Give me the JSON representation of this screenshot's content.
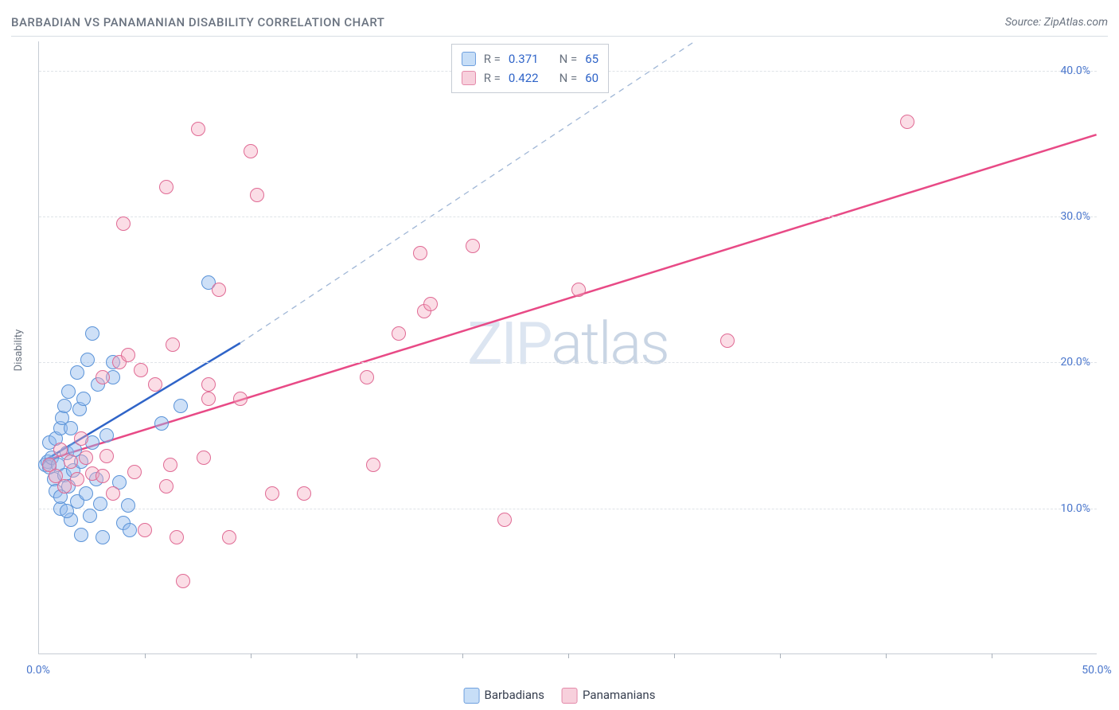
{
  "title": "BARBADIAN VS PANAMANIAN DISABILITY CORRELATION CHART",
  "source": "Source: ZipAtlas.com",
  "watermark_a": "ZIP",
  "watermark_b": "atlas",
  "axis": {
    "ylabel": "Disability",
    "xmin": 0.0,
    "xmax": 50.0,
    "ymin": 0.0,
    "ymax": 42.0,
    "xticks": [
      0.0,
      50.0
    ],
    "xticklabels": [
      "0.0%",
      "50.0%"
    ],
    "yticks": [
      10.0,
      20.0,
      30.0,
      40.0
    ],
    "yticklabels": [
      "10.0%",
      "20.0%",
      "30.0%",
      "40.0%"
    ],
    "xminor": [
      5,
      10,
      15,
      20,
      25,
      30,
      35,
      40,
      45
    ],
    "grid_color": "#dfe3e8",
    "label_color": "#4a76cc",
    "label_fontsize": 14
  },
  "series": [
    {
      "name": "Barbadians",
      "color_fill": "rgba(147,187,237,0.45)",
      "color_stroke": "#5a93d8",
      "trend_color": "#2f64c8",
      "trend_dash_color": "#9fb6d6",
      "trend": {
        "x0": 0.2,
        "y0": 13.2,
        "x1": 9.5,
        "y1": 21.3
      },
      "trend_ext": {
        "x0": 9.5,
        "y0": 21.3,
        "x1": 31.0,
        "y1": 42.0
      },
      "R": 0.371,
      "N": 65,
      "marker_radius": 9,
      "points": [
        [
          0.3,
          13.0
        ],
        [
          0.4,
          13.2
        ],
        [
          0.5,
          12.8
        ],
        [
          0.5,
          14.5
        ],
        [
          0.6,
          13.5
        ],
        [
          0.7,
          12.0
        ],
        [
          0.8,
          11.2
        ],
        [
          0.8,
          14.8
        ],
        [
          0.9,
          13.0
        ],
        [
          1.0,
          15.5
        ],
        [
          1.0,
          10.0
        ],
        [
          1.1,
          16.2
        ],
        [
          1.2,
          12.3
        ],
        [
          1.2,
          17.0
        ],
        [
          1.3,
          13.8
        ],
        [
          1.4,
          11.5
        ],
        [
          1.4,
          18.0
        ],
        [
          1.5,
          9.2
        ],
        [
          1.5,
          15.5
        ],
        [
          1.6,
          12.6
        ],
        [
          1.7,
          14.0
        ],
        [
          1.8,
          19.3
        ],
        [
          1.8,
          10.5
        ],
        [
          1.9,
          16.8
        ],
        [
          2.0,
          8.2
        ],
        [
          2.0,
          13.2
        ],
        [
          2.1,
          17.5
        ],
        [
          2.2,
          11.0
        ],
        [
          2.3,
          20.2
        ],
        [
          2.4,
          9.5
        ],
        [
          2.5,
          14.5
        ],
        [
          2.5,
          22.0
        ],
        [
          2.7,
          12.0
        ],
        [
          2.8,
          18.5
        ],
        [
          2.9,
          10.3
        ],
        [
          3.0,
          8.0
        ],
        [
          3.2,
          15.0
        ],
        [
          3.5,
          20.0
        ],
        [
          3.5,
          19.0
        ],
        [
          3.8,
          11.8
        ],
        [
          4.0,
          9.0
        ],
        [
          4.2,
          10.2
        ],
        [
          4.3,
          8.5
        ],
        [
          5.8,
          15.8
        ],
        [
          6.7,
          17.0
        ],
        [
          8.0,
          25.5
        ],
        [
          1.0,
          10.8
        ],
        [
          1.3,
          9.8
        ]
      ]
    },
    {
      "name": "Panamanians",
      "color_fill": "rgba(244,169,192,0.40)",
      "color_stroke": "#e06a94",
      "trend_color": "#e84a86",
      "trend": {
        "x0": 0.2,
        "y0": 13.2,
        "x1": 50.0,
        "y1": 35.6
      },
      "R": 0.422,
      "N": 60,
      "marker_radius": 9,
      "points": [
        [
          0.5,
          13.0
        ],
        [
          0.8,
          12.2
        ],
        [
          1.0,
          14.0
        ],
        [
          1.2,
          11.5
        ],
        [
          1.5,
          13.2
        ],
        [
          1.8,
          12.0
        ],
        [
          2.0,
          14.8
        ],
        [
          2.2,
          13.5
        ],
        [
          2.5,
          12.4
        ],
        [
          3.0,
          19.0
        ],
        [
          3.0,
          12.2
        ],
        [
          3.2,
          13.6
        ],
        [
          3.5,
          11.0
        ],
        [
          3.8,
          20.0
        ],
        [
          4.0,
          29.5
        ],
        [
          4.2,
          20.5
        ],
        [
          4.5,
          12.5
        ],
        [
          4.8,
          19.5
        ],
        [
          5.0,
          8.5
        ],
        [
          5.5,
          18.5
        ],
        [
          6.0,
          11.5
        ],
        [
          6.2,
          13.0
        ],
        [
          6.3,
          21.2
        ],
        [
          6.5,
          8.0
        ],
        [
          6.8,
          5.0
        ],
        [
          7.5,
          36.0
        ],
        [
          7.8,
          13.5
        ],
        [
          8.0,
          18.5
        ],
        [
          8.0,
          17.5
        ],
        [
          8.5,
          25.0
        ],
        [
          9.0,
          8.0
        ],
        [
          9.5,
          17.5
        ],
        [
          10.0,
          34.5
        ],
        [
          10.3,
          31.5
        ],
        [
          11.0,
          11.0
        ],
        [
          12.5,
          11.0
        ],
        [
          15.5,
          19.0
        ],
        [
          15.8,
          13.0
        ],
        [
          17.0,
          22.0
        ],
        [
          18.0,
          27.5
        ],
        [
          18.2,
          23.5
        ],
        [
          18.5,
          24.0
        ],
        [
          20.5,
          28.0
        ],
        [
          22.0,
          9.2
        ],
        [
          25.5,
          25.0
        ],
        [
          32.5,
          21.5
        ],
        [
          41.0,
          36.5
        ],
        [
          6.0,
          32.0
        ]
      ]
    }
  ],
  "legend_top": {
    "rows": [
      {
        "R_label": "R =",
        "R": "0.371",
        "N_label": "N =",
        "N": "65",
        "swatch": "sw-blue"
      },
      {
        "R_label": "R =",
        "R": "0.422",
        "N_label": "N =",
        "N": "60",
        "swatch": "sw-pink"
      }
    ]
  },
  "legend_bottom": [
    {
      "swatch": "sw-blue",
      "label": "Barbadians"
    },
    {
      "swatch": "sw-pink",
      "label": "Panamanians"
    }
  ]
}
